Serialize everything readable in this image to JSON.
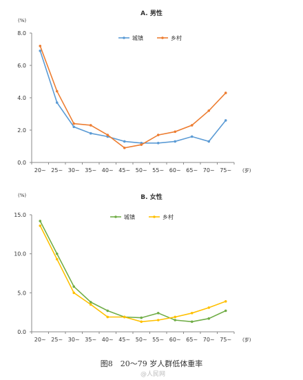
{
  "caption": "图8　20～79 岁人群低体重率",
  "watermark": "@人民网",
  "chart_data": [
    {
      "type": "line",
      "title": "A. 男性",
      "unit_label": "(%)",
      "x_unit": "(岁)",
      "categories": [
        "20~",
        "25~",
        "30~",
        "35~",
        "40~",
        "45~",
        "50~",
        "55~",
        "60~",
        "65~",
        "70~",
        "75~"
      ],
      "ylim": [
        0,
        8
      ],
      "yticks": [
        "0.0",
        "2.0",
        "4.0",
        "6.0",
        "8.0"
      ],
      "ytick_values": [
        0,
        2,
        4,
        6,
        8
      ],
      "grid": false,
      "legend_position": "top-center",
      "series": [
        {
          "name": "城镇",
          "color": "#5b9bd5",
          "values": [
            6.9,
            3.7,
            2.2,
            1.8,
            1.6,
            1.3,
            1.2,
            1.2,
            1.3,
            1.6,
            1.3,
            2.6
          ]
        },
        {
          "name": "乡村",
          "color": "#ed7d31",
          "values": [
            7.2,
            4.4,
            2.4,
            2.3,
            1.7,
            0.9,
            1.1,
            1.7,
            1.9,
            2.3,
            3.2,
            4.3
          ]
        }
      ]
    },
    {
      "type": "line",
      "title": "B. 女性",
      "unit_label": "(%)",
      "x_unit": "(岁)",
      "categories": [
        "20~",
        "25~",
        "30~",
        "35~",
        "40~",
        "45~",
        "50~",
        "55~",
        "60~",
        "65~",
        "70~",
        "75~"
      ],
      "ylim": [
        0,
        15
      ],
      "yticks": [
        "0.0",
        "5.0",
        "10.0",
        "15.0"
      ],
      "ytick_values": [
        0,
        5,
        10,
        15
      ],
      "grid": false,
      "legend_position": "top-center",
      "series": [
        {
          "name": "城镇",
          "color": "#70ad47",
          "values": [
            14.2,
            10.0,
            5.8,
            3.8,
            2.7,
            1.9,
            1.8,
            2.4,
            1.5,
            1.3,
            1.7,
            2.7
          ]
        },
        {
          "name": "乡村",
          "color": "#ffc000",
          "values": [
            13.6,
            9.3,
            5.0,
            3.5,
            1.9,
            1.9,
            1.3,
            1.5,
            1.9,
            2.4,
            3.1,
            3.9
          ]
        }
      ]
    }
  ]
}
